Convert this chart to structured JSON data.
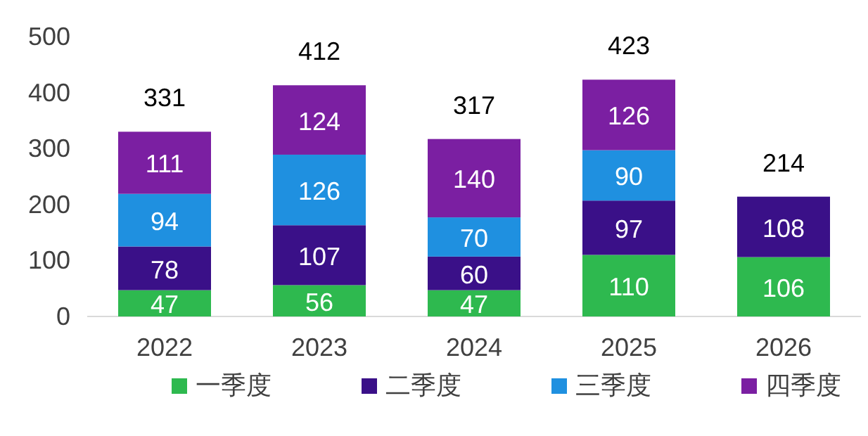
{
  "chart_data": {
    "type": "bar",
    "stacked": true,
    "categories": [
      "2022",
      "2023",
      "2024",
      "2025",
      "2026"
    ],
    "series": [
      {
        "name": "一季度",
        "color": "#2eb94f",
        "values": [
          47,
          56,
          47,
          110,
          106
        ]
      },
      {
        "name": "二季度",
        "color": "#3a1088",
        "values": [
          78,
          107,
          60,
          97,
          108
        ]
      },
      {
        "name": "三季度",
        "color": "#1f90e0",
        "values": [
          94,
          126,
          70,
          90,
          null
        ]
      },
      {
        "name": "四季度",
        "color": "#7b1fa2",
        "values": [
          111,
          124,
          140,
          126,
          null
        ]
      }
    ],
    "totals": [
      "331",
      "412",
      "317",
      "423",
      "214"
    ],
    "data_labels": true,
    "ylim": [
      0,
      500
    ],
    "yticks": [
      0,
      100,
      200,
      300,
      400,
      500
    ],
    "grid": false,
    "legend": "bottom"
  }
}
